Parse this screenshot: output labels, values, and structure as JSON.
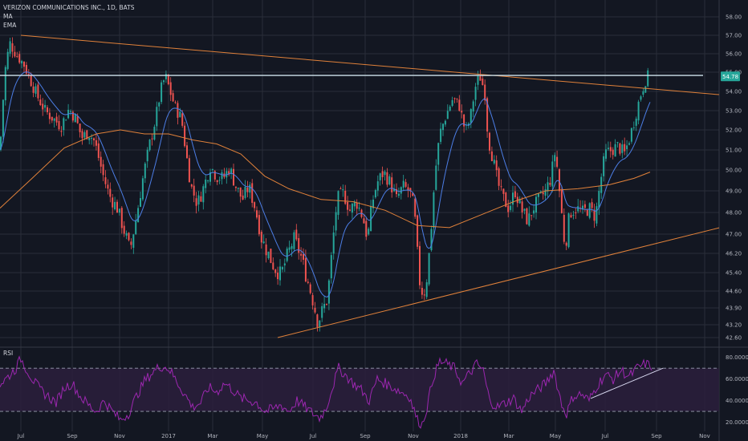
{
  "header": {
    "symbol": "VERIZON COMMUNICATIONS INC., 1D, BATS",
    "indicator_ma": "MA",
    "indicator_ema": "EMA",
    "rsi_label": "RSI"
  },
  "colors": {
    "background": "#131722",
    "grid": "#2a2e39",
    "up_candle": "#26a69a",
    "down_candle": "#ef5350",
    "ma_line": "#e0813a",
    "ema_line": "#4c7ee6",
    "trendline": "#e0813a",
    "resistance": "#cfe3ec",
    "rsi_line": "#9c27b0",
    "rsi_fill": "#2b1e3c",
    "price_tag": "#26a69a"
  },
  "chart_data": {
    "type": "candlestick",
    "x_ticks": [
      "Jul",
      "Sep",
      "Nov",
      "2017",
      "Mar",
      "May",
      "Jul",
      "Sep",
      "Nov",
      "2018",
      "Mar",
      "May",
      "Jul",
      "Sep",
      "Nov"
    ],
    "y_ticks": [
      "58.00",
      "57.00",
      "56.00",
      "55.00",
      "54.00",
      "53.00",
      "52.00",
      "51.00",
      "50.00",
      "49.00",
      "48.00",
      "47.00",
      "46.20",
      "45.40",
      "44.60",
      "43.90",
      "43.20",
      "42.60"
    ],
    "last_price": "54.78",
    "close_path": [
      [
        0,
        51.0
      ],
      [
        6,
        55.0
      ],
      [
        12,
        56.6
      ],
      [
        20,
        56.0
      ],
      [
        30,
        55.4
      ],
      [
        38,
        54.6
      ],
      [
        46,
        53.8
      ],
      [
        56,
        53.0
      ],
      [
        66,
        52.6
      ],
      [
        76,
        52.2
      ],
      [
        86,
        53.1
      ],
      [
        94,
        52.6
      ],
      [
        102,
        51.6
      ],
      [
        110,
        51.9
      ],
      [
        118,
        51.4
      ],
      [
        128,
        49.8
      ],
      [
        136,
        48.8
      ],
      [
        146,
        48.2
      ],
      [
        156,
        47.0
      ],
      [
        162,
        46.3
      ],
      [
        170,
        47.8
      ],
      [
        178,
        49.6
      ],
      [
        186,
        51.2
      ],
      [
        194,
        52.6
      ],
      [
        200,
        54.0
      ],
      [
        206,
        54.8
      ],
      [
        212,
        54.0
      ],
      [
        218,
        53.2
      ],
      [
        226,
        52.6
      ],
      [
        232,
        50.8
      ],
      [
        238,
        49.2
      ],
      [
        246,
        48.4
      ],
      [
        254,
        49.2
      ],
      [
        262,
        50.2
      ],
      [
        270,
        49.7
      ],
      [
        278,
        49.6
      ],
      [
        286,
        50.1
      ],
      [
        294,
        49.2
      ],
      [
        302,
        48.6
      ],
      [
        310,
        49.2
      ],
      [
        318,
        48.2
      ],
      [
        326,
        46.8
      ],
      [
        334,
        46.2
      ],
      [
        342,
        45.6
      ],
      [
        350,
        45.3
      ],
      [
        358,
        46.1
      ],
      [
        366,
        46.8
      ],
      [
        374,
        46.2
      ],
      [
        382,
        45.2
      ],
      [
        390,
        44.2
      ],
      [
        396,
        43.3
      ],
      [
        402,
        43.8
      ],
      [
        408,
        44.3
      ],
      [
        414,
        46.4
      ],
      [
        420,
        48.6
      ],
      [
        428,
        48.9
      ],
      [
        436,
        48.1
      ],
      [
        444,
        48.5
      ],
      [
        452,
        47.8
      ],
      [
        458,
        46.8
      ],
      [
        464,
        48.5
      ],
      [
        470,
        49.4
      ],
      [
        478,
        49.9
      ],
      [
        486,
        49.4
      ],
      [
        494,
        48.6
      ],
      [
        502,
        49.2
      ],
      [
        510,
        49.0
      ],
      [
        516,
        48.2
      ],
      [
        520,
        46.2
      ],
      [
        524,
        44.6
      ],
      [
        530,
        44.6
      ],
      [
        536,
        46.6
      ],
      [
        542,
        49.8
      ],
      [
        548,
        51.8
      ],
      [
        556,
        52.8
      ],
      [
        564,
        53.6
      ],
      [
        572,
        53.3
      ],
      [
        580,
        51.9
      ],
      [
        586,
        52.6
      ],
      [
        592,
        54.2
      ],
      [
        598,
        54.8
      ],
      [
        604,
        54.0
      ],
      [
        608,
        51.6
      ],
      [
        614,
        50.6
      ],
      [
        620,
        49.4
      ],
      [
        626,
        48.7
      ],
      [
        634,
        48.2
      ],
      [
        642,
        49.0
      ],
      [
        650,
        48.1
      ],
      [
        658,
        47.6
      ],
      [
        664,
        48.2
      ],
      [
        672,
        48.6
      ],
      [
        680,
        49.0
      ],
      [
        686,
        49.6
      ],
      [
        692,
        51.0
      ],
      [
        698,
        48.6
      ],
      [
        704,
        46.4
      ],
      [
        710,
        48.0
      ],
      [
        718,
        48.2
      ],
      [
        726,
        48.0
      ],
      [
        734,
        48.2
      ],
      [
        742,
        47.8
      ],
      [
        748,
        49.4
      ],
      [
        754,
        50.8
      ],
      [
        762,
        51.0
      ],
      [
        770,
        51.2
      ],
      [
        778,
        50.8
      ],
      [
        786,
        51.8
      ],
      [
        792,
        52.8
      ],
      [
        798,
        53.8
      ],
      [
        804,
        54.6
      ],
      [
        810,
        54.9
      ]
    ],
    "ma_series": {
      "name": "MA",
      "values": [
        [
          0,
          48.2
        ],
        [
          40,
          49.6
        ],
        [
          80,
          51.1
        ],
        [
          120,
          51.8
        ],
        [
          150,
          52.0
        ],
        [
          180,
          51.8
        ],
        [
          210,
          51.8
        ],
        [
          240,
          51.5
        ],
        [
          270,
          51.3
        ],
        [
          300,
          50.8
        ],
        [
          330,
          49.7
        ],
        [
          360,
          49.1
        ],
        [
          400,
          48.6
        ],
        [
          440,
          48.5
        ],
        [
          480,
          48.1
        ],
        [
          520,
          47.4
        ],
        [
          560,
          47.3
        ],
        [
          600,
          47.9
        ],
        [
          640,
          48.5
        ],
        [
          680,
          49.0
        ],
        [
          720,
          49.1
        ],
        [
          760,
          49.3
        ],
        [
          790,
          49.6
        ],
        [
          810,
          49.9
        ]
      ]
    },
    "upper_trendline": {
      "from": [
        26,
        57.0
      ],
      "to": [
        932,
        53.7
      ]
    },
    "lower_trendline": {
      "from": [
        346,
        42.6
      ],
      "to": [
        932,
        47.6
      ]
    },
    "resistance_line": {
      "price": 54.83,
      "from": 0,
      "to": 876
    },
    "rsi": {
      "label": "RSI",
      "y_ticks": [
        "80.0000",
        "60.0000",
        "40.0000",
        "20.0000"
      ],
      "upper_band": 70,
      "lower_band": 30,
      "path": [
        [
          0,
          55
        ],
        [
          10,
          62
        ],
        [
          20,
          70
        ],
        [
          26,
          79
        ],
        [
          34,
          68
        ],
        [
          42,
          58
        ],
        [
          50,
          50
        ],
        [
          60,
          44
        ],
        [
          70,
          38
        ],
        [
          80,
          52
        ],
        [
          90,
          56
        ],
        [
          100,
          44
        ],
        [
          110,
          36
        ],
        [
          120,
          30
        ],
        [
          130,
          40
        ],
        [
          140,
          30
        ],
        [
          150,
          22
        ],
        [
          160,
          28
        ],
        [
          170,
          44
        ],
        [
          180,
          58
        ],
        [
          190,
          66
        ],
        [
          200,
          72
        ],
        [
          210,
          70
        ],
        [
          220,
          58
        ],
        [
          230,
          46
        ],
        [
          240,
          34
        ],
        [
          250,
          38
        ],
        [
          260,
          52
        ],
        [
          270,
          48
        ],
        [
          280,
          56
        ],
        [
          290,
          50
        ],
        [
          300,
          42
        ],
        [
          310,
          40
        ],
        [
          320,
          38
        ],
        [
          330,
          30
        ],
        [
          340,
          32
        ],
        [
          350,
          36
        ],
        [
          360,
          30
        ],
        [
          370,
          40
        ],
        [
          380,
          34
        ],
        [
          390,
          28
        ],
        [
          398,
          24
        ],
        [
          406,
          32
        ],
        [
          414,
          52
        ],
        [
          422,
          70
        ],
        [
          430,
          64
        ],
        [
          440,
          56
        ],
        [
          450,
          50
        ],
        [
          460,
          40
        ],
        [
          470,
          60
        ],
        [
          480,
          56
        ],
        [
          490,
          52
        ],
        [
          500,
          48
        ],
        [
          510,
          44
        ],
        [
          520,
          22
        ],
        [
          526,
          18
        ],
        [
          532,
          34
        ],
        [
          540,
          62
        ],
        [
          548,
          76
        ],
        [
          556,
          74
        ],
        [
          566,
          70
        ],
        [
          576,
          56
        ],
        [
          586,
          66
        ],
        [
          594,
          74
        ],
        [
          602,
          68
        ],
        [
          610,
          40
        ],
        [
          620,
          34
        ],
        [
          630,
          38
        ],
        [
          640,
          42
        ],
        [
          650,
          30
        ],
        [
          660,
          44
        ],
        [
          670,
          50
        ],
        [
          680,
          56
        ],
        [
          690,
          68
        ],
        [
          700,
          36
        ],
        [
          706,
          28
        ],
        [
          714,
          44
        ],
        [
          724,
          46
        ],
        [
          734,
          40
        ],
        [
          744,
          54
        ],
        [
          754,
          64
        ],
        [
          764,
          60
        ],
        [
          774,
          68
        ],
        [
          784,
          62
        ],
        [
          794,
          70
        ],
        [
          804,
          74
        ],
        [
          812,
          72
        ]
      ],
      "rising_trendline": {
        "from": [
          736,
          42
        ],
        "to": [
          826,
          70
        ]
      }
    }
  }
}
